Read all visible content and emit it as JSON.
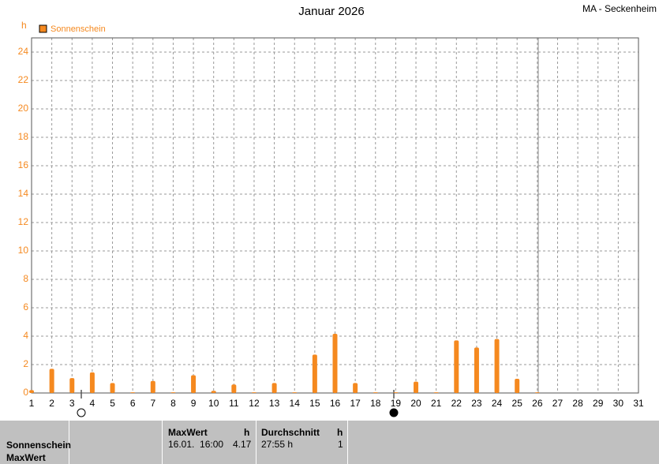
{
  "chart_data": {
    "type": "bar",
    "title": "Januar 2026",
    "subtitle": "MA - Seckenheim",
    "y_label": "h",
    "x": [
      1,
      2,
      3,
      4,
      5,
      6,
      7,
      8,
      9,
      10,
      11,
      12,
      13,
      14,
      15,
      16,
      17,
      18,
      19,
      20,
      21,
      22,
      23,
      24,
      25,
      26
    ],
    "series": [
      {
        "name": "Sonnenschein",
        "color": "#f5891f",
        "values": [
          0.2,
          1.7,
          1.05,
          1.45,
          0.7,
          0.05,
          0.85,
          0.05,
          1.25,
          0.15,
          0.6,
          0.05,
          0.7,
          0.05,
          2.7,
          4.17,
          0.7,
          0.05,
          0.05,
          0.8,
          0.05,
          3.7,
          3.2,
          3.8,
          1.0,
          0.05
        ]
      }
    ],
    "xlim": [
      1,
      31
    ],
    "xticks": [
      1,
      2,
      3,
      4,
      5,
      6,
      7,
      8,
      9,
      10,
      11,
      12,
      13,
      14,
      15,
      16,
      17,
      18,
      19,
      20,
      21,
      22,
      23,
      24,
      25,
      26,
      27,
      28,
      29,
      30,
      31
    ],
    "ylim": [
      0,
      25
    ],
    "yticks": [
      0,
      2,
      4,
      6,
      8,
      10,
      12,
      14,
      16,
      18,
      20,
      22,
      24
    ],
    "grid": true
  },
  "table": {
    "header": [
      "MaxWert",
      "h",
      "Durchschnitt",
      "h"
    ],
    "row_labels": [
      "Sonnenschein",
      "MaxWert"
    ],
    "rows": [
      [
        "16.01.  16:00",
        "4.17",
        "27:55 h",
        "1"
      ]
    ]
  }
}
